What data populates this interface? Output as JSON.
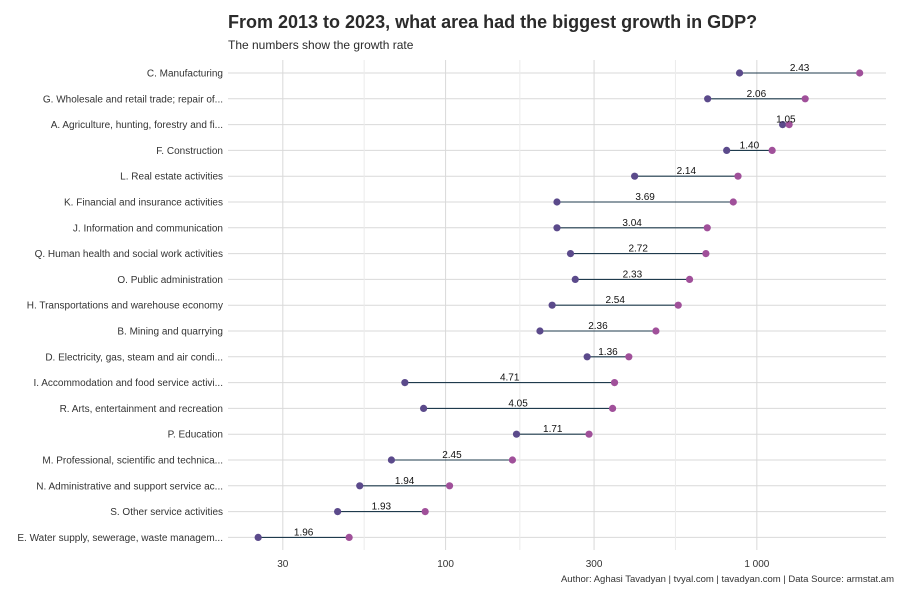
{
  "chart_data": {
    "type": "dumbbell",
    "title": "From 2013 to 2023, what area had the biggest growth in GDP?",
    "subtitle": "The numbers show the growth rate",
    "caption": "Author: Aghasi Tavadyan  |  tvyal.com  |  tavadyan.com    |  Data Source: armstat.am",
    "x_scale": "log",
    "xlim": [
      20,
      2600
    ],
    "x_ticks": [
      30,
      100,
      300,
      1000
    ],
    "x_tick_labels": [
      "30",
      "100",
      "300",
      "1 000"
    ],
    "grid": true,
    "colors": {
      "start": "#5b4a8b",
      "end": "#a0509a",
      "segment": "#1f3b4d",
      "grid": "#d9d9d9",
      "text": "#333333"
    },
    "categories": [
      {
        "label": "C. Manufacturing",
        "start": 880,
        "end": 2140,
        "ratio": "2.43"
      },
      {
        "label": "G. Wholesale and retail trade; repair of...",
        "start": 695,
        "end": 1430,
        "ratio": "2.06"
      },
      {
        "label": "A. Agriculture, hunting, forestry and fi...",
        "start": 1210,
        "end": 1270,
        "ratio": "1.05"
      },
      {
        "label": "F. Construction",
        "start": 800,
        "end": 1120,
        "ratio": "1.40"
      },
      {
        "label": "L. Real estate activities",
        "start": 405,
        "end": 870,
        "ratio": "2.14"
      },
      {
        "label": "K. Financial and insurance activities",
        "start": 228,
        "end": 840,
        "ratio": "3.69"
      },
      {
        "label": "J. Information and communication",
        "start": 228,
        "end": 693,
        "ratio": "3.04"
      },
      {
        "label": "Q. Human health and social work activities",
        "start": 252,
        "end": 686,
        "ratio": "2.72"
      },
      {
        "label": "O. Public administration",
        "start": 261,
        "end": 608,
        "ratio": "2.33"
      },
      {
        "label": "H. Transportations and warehouse economy",
        "start": 220,
        "end": 559,
        "ratio": "2.54"
      },
      {
        "label": "B. Mining and quarrying",
        "start": 201,
        "end": 474,
        "ratio": "2.36"
      },
      {
        "label": "D. Electricity, gas, steam and air condi...",
        "start": 285,
        "end": 388,
        "ratio": "1.36"
      },
      {
        "label": "I. Accommodation and food service activi...",
        "start": 74,
        "end": 349,
        "ratio": "4.71"
      },
      {
        "label": "R. Arts, entertainment and recreation",
        "start": 85,
        "end": 344,
        "ratio": "4.05"
      },
      {
        "label": "P. Education",
        "start": 169,
        "end": 289,
        "ratio": "1.71"
      },
      {
        "label": "M. Professional, scientific and technica...",
        "start": 67,
        "end": 164,
        "ratio": "2.45"
      },
      {
        "label": "N. Administrative and support service ac...",
        "start": 53,
        "end": 103,
        "ratio": "1.94"
      },
      {
        "label": "S. Other service activities",
        "start": 45,
        "end": 86,
        "ratio": "1.93"
      },
      {
        "label": "E. Water supply, sewerage, waste managem...",
        "start": 25,
        "end": 49,
        "ratio": "1.96"
      }
    ]
  }
}
